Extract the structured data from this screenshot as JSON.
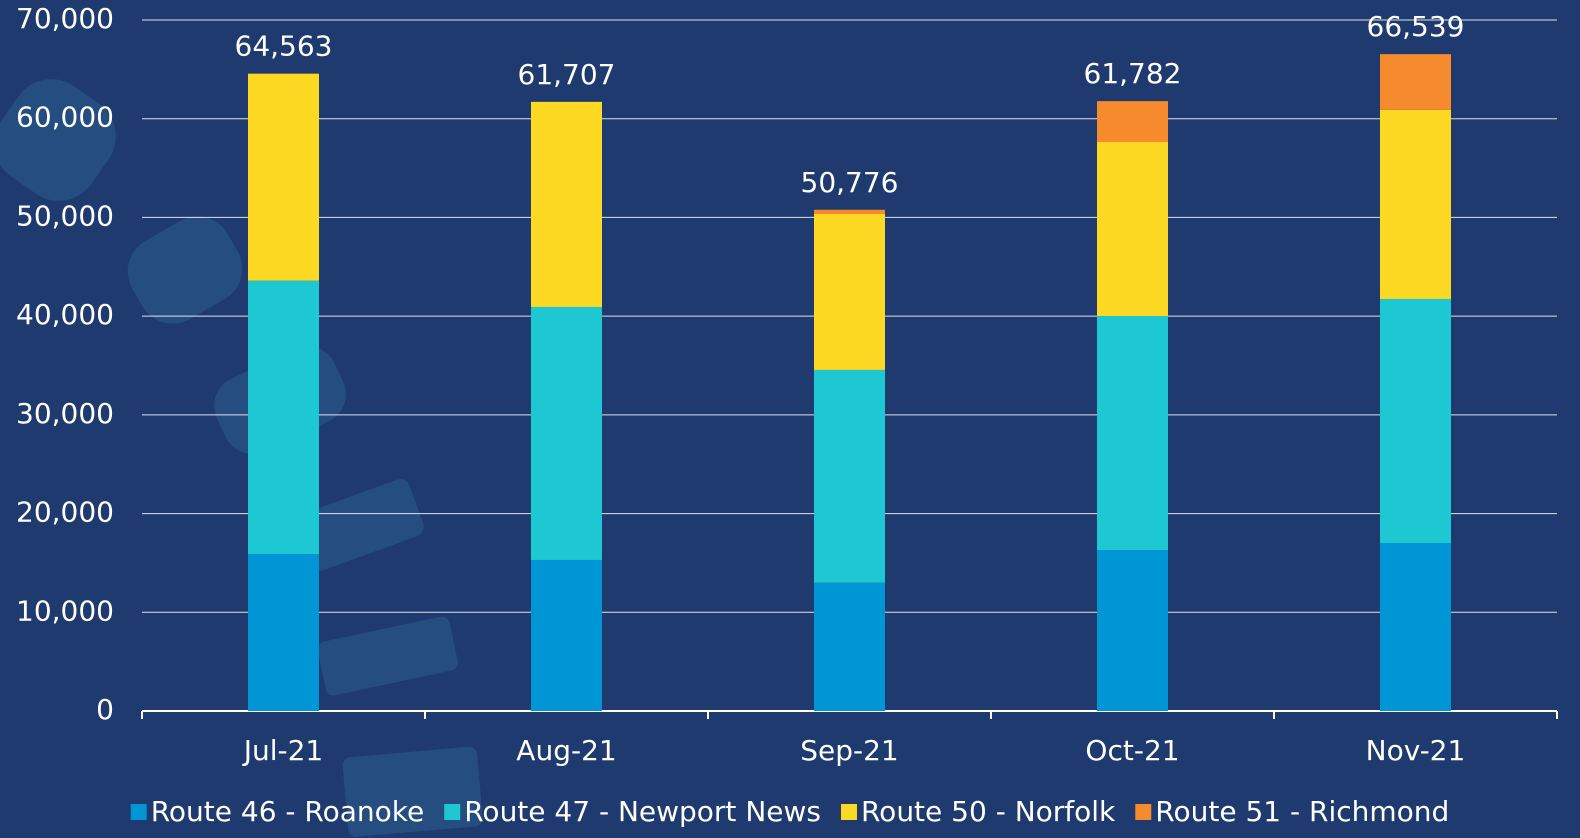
{
  "chart_data": {
    "type": "stacked_bar",
    "categories": [
      "Jul-21",
      "Aug-21",
      "Sep-21",
      "Oct-21",
      "Nov-21"
    ],
    "series": [
      {
        "name": "Route 46 - Roanoke",
        "color": "#0096d6",
        "values": [
          15900,
          15300,
          13000,
          16300,
          17020
        ]
      },
      {
        "name": "Route 47 - Newport News",
        "color": "#1ec8d2",
        "values": [
          27700,
          25630,
          21550,
          23720,
          24720
        ]
      },
      {
        "name": "Route 50 - Norfolk",
        "color": "#fdd923",
        "values": [
          20963,
          20777,
          15800,
          17620,
          19150
        ]
      },
      {
        "name": "Route 51 - Richmond",
        "color": "#f58b2c",
        "values": [
          0,
          0,
          426,
          4142,
          5649
        ]
      }
    ],
    "totals": {
      "values": [
        64563,
        61707,
        50776,
        61782,
        66539
      ],
      "value_labels": [
        "64,563",
        "61,707",
        "50,776",
        "61,782",
        "66,539"
      ]
    },
    "ylim": [
      0,
      70000
    ],
    "yticks": [
      0,
      {
        "value": 10000,
        "label": "10,000"
      },
      {
        "value": 20000,
        "label": "20,000"
      },
      {
        "value": 30000,
        "label": "30,000"
      },
      {
        "value": 40000,
        "label": "40,000"
      },
      {
        "value": 50000,
        "label": "50,000"
      },
      {
        "value": 60000,
        "label": "60,000"
      },
      {
        "value": 70000,
        "label": "70,000"
      }
    ],
    "grid": true,
    "legend": "bottom"
  }
}
